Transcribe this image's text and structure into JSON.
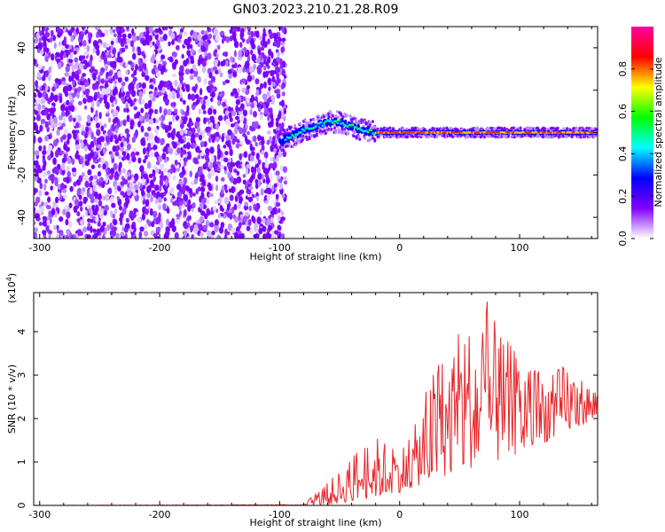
{
  "title": "GN03.2023.210.21.28.R09",
  "chart_data": [
    {
      "type": "heatmap",
      "name": "spectrogram",
      "xlabel": "Height of straight line (km)",
      "ylabel": "Frequency (Hz)",
      "xlim": [
        -305,
        165
      ],
      "ylim": [
        -50,
        50
      ],
      "xticks": [
        -300,
        -200,
        -100,
        0,
        100
      ],
      "yticks": [
        -40,
        -20,
        0,
        20,
        40
      ],
      "noise_region_x": [
        -305,
        -95
      ],
      "signal_trace": [
        {
          "x": -100,
          "y": -4
        },
        {
          "x": -90,
          "y": -2
        },
        {
          "x": -80,
          "y": 1
        },
        {
          "x": -70,
          "y": 3
        },
        {
          "x": -60,
          "y": 5
        },
        {
          "x": -50,
          "y": 5
        },
        {
          "x": -40,
          "y": 3
        },
        {
          "x": -30,
          "y": 1
        },
        {
          "x": -20,
          "y": 0
        },
        {
          "x": 0,
          "y": 0
        },
        {
          "x": 50,
          "y": 0
        },
        {
          "x": 100,
          "y": 0
        },
        {
          "x": 165,
          "y": 0
        }
      ],
      "colorbar": {
        "label": "Normalized spectral amplitude",
        "range": [
          0,
          1
        ],
        "ticks": [
          "0.0",
          "0.2",
          "0.4",
          "0.6",
          "0.8"
        ],
        "colors": [
          "#ffffff",
          "#7f00ff",
          "#0000ff",
          "#00ffff",
          "#00ff00",
          "#ffff00",
          "#ff0000",
          "#ff00a0"
        ]
      }
    },
    {
      "type": "line",
      "name": "snr",
      "xlabel": "Height of straight line (km)",
      "ylabel": "SNR (10 * v/v)",
      "yscale_label": "(x10",
      "yscale_exp": "4",
      "yscale_close": ")",
      "xlim": [
        -305,
        165
      ],
      "ylim": [
        0,
        4.9
      ],
      "xticks": [
        -300,
        -200,
        -100,
        0,
        100
      ],
      "yticks": [
        0,
        1,
        2,
        3,
        4
      ],
      "color": "#e8262a",
      "envelope": [
        {
          "x": -305,
          "y": 0
        },
        {
          "x": -80,
          "y": 0.02
        },
        {
          "x": -70,
          "y": 0.3
        },
        {
          "x": -60,
          "y": 0.55
        },
        {
          "x": -50,
          "y": 0.8
        },
        {
          "x": -40,
          "y": 1.2
        },
        {
          "x": -30,
          "y": 1.5
        },
        {
          "x": -20,
          "y": 1.6
        },
        {
          "x": -10,
          "y": 1.5
        },
        {
          "x": 0,
          "y": 1.4
        },
        {
          "x": 10,
          "y": 1.6
        },
        {
          "x": 20,
          "y": 2.5
        },
        {
          "x": 30,
          "y": 3.3
        },
        {
          "x": 40,
          "y": 3.7
        },
        {
          "x": 50,
          "y": 4.0
        },
        {
          "x": 60,
          "y": 4.3
        },
        {
          "x": 70,
          "y": 4.5
        },
        {
          "x": 75,
          "y": 4.9
        },
        {
          "x": 80,
          "y": 4.1
        },
        {
          "x": 90,
          "y": 3.8
        },
        {
          "x": 100,
          "y": 3.5
        },
        {
          "x": 110,
          "y": 3.3
        },
        {
          "x": 120,
          "y": 3.2
        },
        {
          "x": 130,
          "y": 3.1
        },
        {
          "x": 140,
          "y": 3.4
        },
        {
          "x": 150,
          "y": 3.0
        },
        {
          "x": 160,
          "y": 2.8
        },
        {
          "x": 165,
          "y": 2.7
        }
      ],
      "floor": [
        {
          "x": -305,
          "y": 0
        },
        {
          "x": -60,
          "y": 0
        },
        {
          "x": -40,
          "y": 0.1
        },
        {
          "x": 0,
          "y": 0.3
        },
        {
          "x": 20,
          "y": 0.5
        },
        {
          "x": 50,
          "y": 0.8
        },
        {
          "x": 80,
          "y": 1.0
        },
        {
          "x": 110,
          "y": 1.3
        },
        {
          "x": 140,
          "y": 1.7
        },
        {
          "x": 165,
          "y": 2.0
        }
      ]
    }
  ]
}
